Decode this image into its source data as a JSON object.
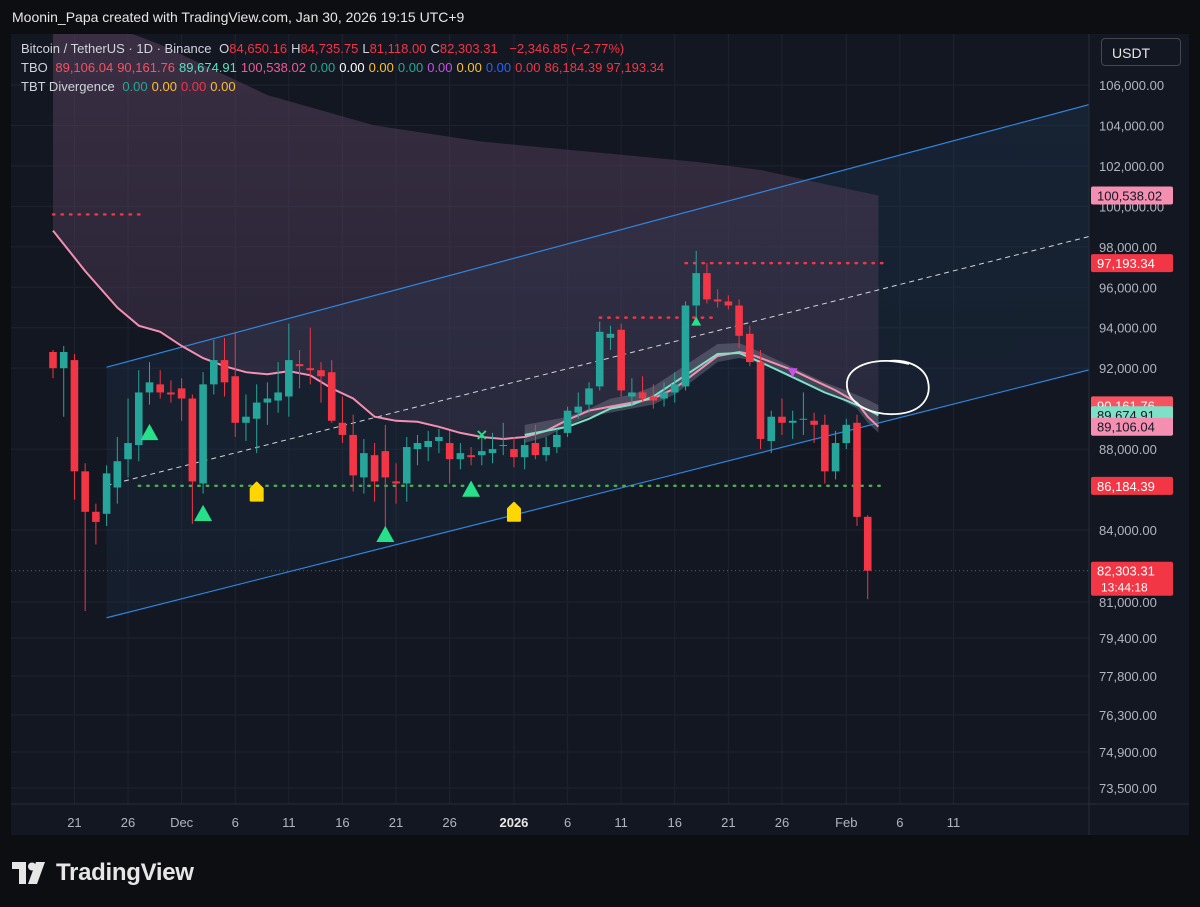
{
  "header": {
    "credit": "Moonin_Papa created with TradingView.com, Jan 30, 2026 19:15 UTC+9"
  },
  "legend": {
    "symbol": "Bitcoin / TetherUS · 1D · Binance",
    "ohlc": [
      {
        "k": "O",
        "v": "84,650.16"
      },
      {
        "k": "H",
        "v": "84,735.75"
      },
      {
        "k": "L",
        "v": "81,118.00"
      },
      {
        "k": "C",
        "v": "82,303.31"
      }
    ],
    "change": "−2,346.85 (−2.77%)",
    "tbo_name": "TBO",
    "tbo_values": [
      {
        "v": "89,106.04",
        "c": "#f7525f"
      },
      {
        "v": "90,161.76",
        "c": "#f7525f"
      },
      {
        "v": "89,674.91",
        "c": "#5ce0c0"
      },
      {
        "v": "100,538.02",
        "c": "#f05a9b"
      },
      {
        "v": "0.00",
        "c": "#22ab94"
      },
      {
        "v": "0.00",
        "c": "#ffffff"
      },
      {
        "v": "0.00",
        "c": "#fbc02d"
      },
      {
        "v": "0.00",
        "c": "#22ab94"
      },
      {
        "v": "0.00",
        "c": "#c850e6"
      },
      {
        "v": "0.00",
        "c": "#fbc02d"
      },
      {
        "v": "0.00",
        "c": "#2962ff"
      },
      {
        "v": "0.00",
        "c": "#f23645"
      },
      {
        "v": "86,184.39",
        "c": "#f23645"
      },
      {
        "v": "97,193.34",
        "c": "#f23645"
      }
    ],
    "tbt_name": "TBT Divergence",
    "tbt_values": [
      {
        "v": "0.00",
        "c": "#22ab94"
      },
      {
        "v": "0.00",
        "c": "#fbc02d"
      },
      {
        "v": "0.00",
        "c": "#f23645"
      },
      {
        "v": "0.00",
        "c": "#fbc02d"
      }
    ]
  },
  "unit_button": "USDT",
  "footer": {
    "brand": "TradingView"
  },
  "chart_data": {
    "type": "candlestick",
    "symbol": "Bitcoin / TetherUS",
    "interval": "1D",
    "exchange": "Binance",
    "colors": {
      "up": "#26a69a",
      "down": "#f23645",
      "background": "#131722",
      "grid": "#1f2330",
      "channel": "#2e86de",
      "tbo_fast": "#f48fb1",
      "tbo_slow": "#7fe0c8"
    },
    "y_ticks": [
      "106,000.00",
      "104,000.00",
      "102,000.00",
      "100,000.00",
      "98,000.00",
      "96,000.00",
      "94,000.00",
      "92,000.00",
      "88,000.00",
      "84,000.00",
      "81,000.00",
      "79,400.00",
      "77,800.00",
      "76,300.00",
      "74,900.00",
      "73,500.00"
    ],
    "y_tick_values": [
      106000,
      104000,
      102000,
      100000,
      98000,
      96000,
      94000,
      92000,
      88000,
      84000,
      81000,
      79400,
      77800,
      76300,
      74900,
      73500
    ],
    "x_ticks": [
      {
        "label": "21",
        "date": "2025-11-21",
        "bold": false
      },
      {
        "label": "26",
        "date": "2025-11-26",
        "bold": false
      },
      {
        "label": "Dec",
        "date": "2025-12-01",
        "bold": false
      },
      {
        "label": "6",
        "date": "2025-12-06",
        "bold": false
      },
      {
        "label": "11",
        "date": "2025-12-11",
        "bold": false
      },
      {
        "label": "16",
        "date": "2025-12-16",
        "bold": false
      },
      {
        "label": "21",
        "date": "2025-12-21",
        "bold": false
      },
      {
        "label": "26",
        "date": "2025-12-26",
        "bold": false
      },
      {
        "label": "2026",
        "date": "2026-01-01",
        "bold": true
      },
      {
        "label": "6",
        "date": "2026-01-06",
        "bold": false
      },
      {
        "label": "11",
        "date": "2026-01-11",
        "bold": false
      },
      {
        "label": "16",
        "date": "2026-01-16",
        "bold": false
      },
      {
        "label": "21",
        "date": "2026-01-21",
        "bold": false
      },
      {
        "label": "26",
        "date": "2026-01-26",
        "bold": false
      },
      {
        "label": "Feb",
        "date": "2026-02-01",
        "bold": false
      },
      {
        "label": "6",
        "date": "2026-02-06",
        "bold": false
      },
      {
        "label": "11",
        "date": "2026-02-11",
        "bold": false
      }
    ],
    "price_labels": [
      {
        "text": "100,538.02",
        "value": 100538.02,
        "bg": "#f48fb1",
        "fg": "#131722"
      },
      {
        "text": "97,193.34",
        "value": 97193.34,
        "bg": "#f23645",
        "fg": "#ffffff"
      },
      {
        "text": "90,161.76",
        "value": 90161.76,
        "bg": "#f7525f",
        "fg": "#ffffff"
      },
      {
        "text": "89,674.91",
        "value": 89674.91,
        "bg": "#7fe0c8",
        "fg": "#131722"
      },
      {
        "text": "89,106.04",
        "value": 89106.04,
        "bg": "#f48fb1",
        "fg": "#131722"
      },
      {
        "text": "86,184.39",
        "value": 86184.39,
        "bg": "#f23645",
        "fg": "#ffffff"
      },
      {
        "text": "82,303.31",
        "value": 82303.31,
        "bg": "#f23645",
        "fg": "#ffffff"
      }
    ],
    "countdown": "13:44:18",
    "candles": [
      {
        "d": "2025-11-19",
        "o": 92800,
        "h": 92900,
        "l": 91500,
        "c": 92000
      },
      {
        "d": "2025-11-20",
        "o": 92000,
        "h": 93100,
        "l": 89600,
        "c": 92800
      },
      {
        "d": "2025-11-21",
        "o": 92400,
        "h": 92700,
        "l": 85500,
        "c": 86900
      },
      {
        "d": "2025-11-22",
        "o": 86900,
        "h": 87300,
        "l": 80600,
        "c": 84900
      },
      {
        "d": "2025-11-23",
        "o": 84900,
        "h": 85300,
        "l": 83400,
        "c": 84400
      },
      {
        "d": "2025-11-24",
        "o": 84800,
        "h": 87200,
        "l": 84200,
        "c": 86800
      },
      {
        "d": "2025-11-25",
        "o": 86100,
        "h": 88600,
        "l": 85300,
        "c": 87400
      },
      {
        "d": "2025-11-26",
        "o": 87500,
        "h": 90500,
        "l": 86600,
        "c": 88300
      },
      {
        "d": "2025-11-27",
        "o": 88200,
        "h": 91900,
        "l": 87400,
        "c": 90800
      },
      {
        "d": "2025-11-28",
        "o": 90800,
        "h": 92300,
        "l": 90200,
        "c": 91300
      },
      {
        "d": "2025-11-29",
        "o": 91200,
        "h": 91900,
        "l": 90500,
        "c": 90800
      },
      {
        "d": "2025-11-30",
        "o": 90800,
        "h": 91400,
        "l": 90300,
        "c": 90700
      },
      {
        "d": "2025-12-01",
        "o": 91000,
        "h": 91500,
        "l": 89400,
        "c": 90500
      },
      {
        "d": "2025-12-02",
        "o": 90500,
        "h": 90700,
        "l": 84300,
        "c": 86400
      },
      {
        "d": "2025-12-03",
        "o": 86300,
        "h": 91800,
        "l": 85800,
        "c": 91200
      },
      {
        "d": "2025-12-04",
        "o": 91200,
        "h": 93400,
        "l": 90700,
        "c": 92400
      },
      {
        "d": "2025-12-05",
        "o": 92400,
        "h": 93500,
        "l": 90600,
        "c": 91300
      },
      {
        "d": "2025-12-06",
        "o": 91600,
        "h": 93800,
        "l": 88600,
        "c": 89300
      },
      {
        "d": "2025-12-07",
        "o": 89300,
        "h": 90700,
        "l": 88400,
        "c": 89600
      },
      {
        "d": "2025-12-08",
        "o": 89500,
        "h": 91200,
        "l": 87800,
        "c": 90300
      },
      {
        "d": "2025-12-09",
        "o": 90300,
        "h": 91300,
        "l": 89200,
        "c": 90500
      },
      {
        "d": "2025-12-10",
        "o": 90400,
        "h": 92300,
        "l": 89800,
        "c": 90800
      },
      {
        "d": "2025-12-11",
        "o": 90600,
        "h": 94200,
        "l": 89600,
        "c": 92400
      },
      {
        "d": "2025-12-12",
        "o": 92200,
        "h": 92900,
        "l": 91000,
        "c": 92100
      },
      {
        "d": "2025-12-13",
        "o": 92000,
        "h": 94000,
        "l": 91200,
        "c": 91900
      },
      {
        "d": "2025-12-14",
        "o": 91900,
        "h": 92300,
        "l": 90300,
        "c": 91600
      },
      {
        "d": "2025-12-15",
        "o": 91800,
        "h": 92400,
        "l": 89300,
        "c": 89400
      },
      {
        "d": "2025-12-16",
        "o": 89300,
        "h": 90600,
        "l": 88300,
        "c": 88700
      },
      {
        "d": "2025-12-17",
        "o": 88700,
        "h": 89700,
        "l": 85900,
        "c": 86700
      },
      {
        "d": "2025-12-18",
        "o": 86600,
        "h": 88500,
        "l": 85800,
        "c": 87800
      },
      {
        "d": "2025-12-19",
        "o": 87700,
        "h": 88300,
        "l": 85400,
        "c": 86400
      },
      {
        "d": "2025-12-20",
        "o": 87900,
        "h": 89200,
        "l": 84100,
        "c": 86600
      },
      {
        "d": "2025-12-21",
        "o": 86400,
        "h": 87300,
        "l": 85300,
        "c": 86300
      },
      {
        "d": "2025-12-22",
        "o": 86300,
        "h": 88600,
        "l": 85400,
        "c": 88100
      },
      {
        "d": "2025-12-23",
        "o": 88000,
        "h": 88700,
        "l": 87200,
        "c": 88300
      },
      {
        "d": "2025-12-24",
        "o": 88100,
        "h": 88900,
        "l": 87400,
        "c": 88400
      },
      {
        "d": "2025-12-25",
        "o": 88400,
        "h": 89000,
        "l": 87800,
        "c": 88600
      },
      {
        "d": "2025-12-26",
        "o": 88300,
        "h": 88900,
        "l": 86300,
        "c": 87500
      },
      {
        "d": "2025-12-27",
        "o": 87500,
        "h": 88300,
        "l": 87000,
        "c": 87800
      },
      {
        "d": "2025-12-28",
        "o": 87700,
        "h": 88100,
        "l": 87200,
        "c": 87600
      },
      {
        "d": "2025-12-29",
        "o": 87700,
        "h": 88600,
        "l": 87200,
        "c": 87900
      },
      {
        "d": "2025-12-30",
        "o": 87800,
        "h": 88800,
        "l": 87300,
        "c": 88000
      },
      {
        "d": "2025-12-31",
        "o": 88200,
        "h": 89300,
        "l": 87700,
        "c": 88200
      },
      {
        "d": "2026-01-01",
        "o": 88000,
        "h": 88600,
        "l": 87100,
        "c": 87600
      },
      {
        "d": "2026-01-02",
        "o": 87600,
        "h": 88500,
        "l": 87000,
        "c": 88200
      },
      {
        "d": "2026-01-03",
        "o": 88300,
        "h": 89200,
        "l": 87500,
        "c": 87700
      },
      {
        "d": "2026-01-04",
        "o": 87700,
        "h": 88600,
        "l": 87400,
        "c": 88100
      },
      {
        "d": "2026-01-05",
        "o": 88100,
        "h": 89000,
        "l": 87800,
        "c": 88700
      },
      {
        "d": "2026-01-06",
        "o": 88800,
        "h": 90100,
        "l": 88600,
        "c": 89900
      },
      {
        "d": "2026-01-07",
        "o": 89800,
        "h": 90800,
        "l": 89500,
        "c": 90100
      },
      {
        "d": "2026-01-08",
        "o": 90200,
        "h": 91300,
        "l": 89800,
        "c": 91000
      },
      {
        "d": "2026-01-09",
        "o": 91100,
        "h": 94300,
        "l": 90900,
        "c": 93800
      },
      {
        "d": "2026-01-10",
        "o": 93500,
        "h": 94100,
        "l": 92900,
        "c": 93700
      },
      {
        "d": "2026-01-11",
        "o": 93900,
        "h": 94200,
        "l": 90600,
        "c": 90900
      },
      {
        "d": "2026-01-12",
        "o": 90600,
        "h": 91500,
        "l": 90100,
        "c": 90800
      },
      {
        "d": "2026-01-13",
        "o": 90800,
        "h": 91600,
        "l": 90300,
        "c": 90500
      },
      {
        "d": "2026-01-14",
        "o": 90600,
        "h": 91200,
        "l": 90000,
        "c": 90400
      },
      {
        "d": "2026-01-15",
        "o": 90500,
        "h": 91300,
        "l": 90100,
        "c": 90800
      },
      {
        "d": "2026-01-16",
        "o": 90800,
        "h": 91800,
        "l": 90300,
        "c": 91200
      },
      {
        "d": "2026-01-17",
        "o": 91100,
        "h": 95300,
        "l": 90900,
        "c": 95100
      },
      {
        "d": "2026-01-18",
        "o": 95100,
        "h": 97800,
        "l": 94500,
        "c": 96700
      },
      {
        "d": "2026-01-19",
        "o": 96700,
        "h": 97200,
        "l": 95200,
        "c": 95400
      },
      {
        "d": "2026-01-20",
        "o": 95400,
        "h": 95900,
        "l": 95000,
        "c": 95300
      },
      {
        "d": "2026-01-21",
        "o": 95300,
        "h": 95600,
        "l": 94900,
        "c": 95100
      },
      {
        "d": "2026-01-22",
        "o": 95100,
        "h": 95400,
        "l": 93000,
        "c": 93600
      },
      {
        "d": "2026-01-23",
        "o": 93700,
        "h": 94100,
        "l": 92100,
        "c": 92300
      },
      {
        "d": "2026-01-24",
        "o": 92300,
        "h": 92900,
        "l": 88000,
        "c": 88500
      },
      {
        "d": "2026-01-25",
        "o": 88400,
        "h": 89900,
        "l": 87800,
        "c": 89600
      },
      {
        "d": "2026-01-26",
        "o": 89600,
        "h": 90500,
        "l": 88700,
        "c": 89300
      },
      {
        "d": "2026-01-27",
        "o": 89300,
        "h": 89900,
        "l": 88500,
        "c": 89400
      },
      {
        "d": "2026-01-28",
        "o": 89500,
        "h": 90800,
        "l": 88700,
        "c": 89500
      },
      {
        "d": "2026-01-29",
        "o": 89400,
        "h": 89800,
        "l": 88300,
        "c": 89200
      },
      {
        "d": "2026-01-30",
        "o": 89200,
        "h": 89700,
        "l": 86300,
        "c": 86900
      },
      {
        "d": "2026-01-31",
        "o": 86900,
        "h": 88900,
        "l": 86500,
        "c": 88300
      },
      {
        "d": "2026-02-01",
        "o": 88300,
        "h": 89500,
        "l": 88000,
        "c": 89200
      },
      {
        "d": "2026-02-02",
        "o": 89300,
        "h": 89700,
        "l": 84200,
        "c": 84650
      },
      {
        "d": "2026-02-03",
        "o": 84650.16,
        "h": 84735.75,
        "l": 81118,
        "c": 82303.31
      }
    ],
    "tbo_fast": [
      [
        0,
        98800
      ],
      [
        3,
        96800
      ],
      [
        6,
        95000
      ],
      [
        8,
        94100
      ],
      [
        10,
        93800
      ],
      [
        12,
        93100
      ],
      [
        14,
        92500
      ],
      [
        16,
        92100
      ],
      [
        18,
        91800
      ],
      [
        20,
        91700
      ],
      [
        22,
        91850
      ],
      [
        24,
        91650
      ],
      [
        26,
        91000
      ],
      [
        28,
        90500
      ],
      [
        30,
        89600
      ],
      [
        32,
        89400
      ],
      [
        34,
        89350
      ],
      [
        36,
        89100
      ],
      [
        38,
        88800
      ],
      [
        40,
        88600
      ],
      [
        42,
        88500
      ],
      [
        44,
        88600
      ],
      [
        46,
        88900
      ],
      [
        48,
        89450
      ],
      [
        50,
        89900
      ],
      [
        52,
        90100
      ],
      [
        54,
        90300
      ],
      [
        56,
        90500
      ],
      [
        58,
        91000
      ],
      [
        60,
        91800
      ],
      [
        62,
        92600
      ],
      [
        64,
        92800
      ],
      [
        65,
        92700
      ],
      [
        67,
        92300
      ],
      [
        69,
        91900
      ],
      [
        71,
        91400
      ],
      [
        73,
        90900
      ],
      [
        75,
        90300
      ],
      [
        76,
        89600
      ],
      [
        77,
        89106
      ]
    ],
    "tbo_slow": [
      [
        44,
        88700
      ],
      [
        46,
        88900
      ],
      [
        48,
        89100
      ],
      [
        50,
        89500
      ],
      [
        52,
        90000
      ],
      [
        54,
        90200
      ],
      [
        56,
        90600
      ],
      [
        58,
        91300
      ],
      [
        60,
        92000
      ],
      [
        62,
        92700
      ],
      [
        64,
        92750
      ],
      [
        66,
        92300
      ],
      [
        68,
        91800
      ],
      [
        70,
        91300
      ],
      [
        72,
        90800
      ],
      [
        74,
        90400
      ],
      [
        76,
        89950
      ],
      [
        77,
        89675
      ]
    ],
    "channel": {
      "upper": [
        [
          5,
          92050
        ],
        [
          107,
          106500
        ]
      ],
      "lower": [
        [
          5,
          80300
        ],
        [
          107,
          93300
        ]
      ],
      "mid": [
        [
          5,
          86200
        ],
        [
          107,
          99900
        ]
      ]
    },
    "levels": [
      {
        "value": 99600,
        "from": 0,
        "to": 8,
        "color": "#f23645"
      },
      {
        "value": 97193.34,
        "from": 59,
        "to": 77,
        "color": "#f23645"
      },
      {
        "value": 94500,
        "from": 51,
        "to": 61,
        "color": "#f23645"
      },
      {
        "value": 86184.39,
        "from": 8,
        "to": 77,
        "color": "#4caf50"
      }
    ],
    "markers": [
      {
        "i": 9,
        "type": "up",
        "value": 88800,
        "color": "#26e08a",
        "size": "lg"
      },
      {
        "i": 14,
        "type": "up",
        "value": 84800,
        "color": "#26e08a",
        "size": "lg"
      },
      {
        "i": 19,
        "type": "tag",
        "value": 85900,
        "color": "#ffd600"
      },
      {
        "i": 31,
        "type": "up",
        "value": 83800,
        "color": "#26e08a",
        "size": "lg"
      },
      {
        "i": 39,
        "type": "up",
        "value": 86000,
        "color": "#26e08a",
        "size": "lg"
      },
      {
        "i": 40,
        "type": "x",
        "value": 88700,
        "color": "#26e08a"
      },
      {
        "i": 43,
        "type": "tag",
        "value": 84900,
        "color": "#ffd600"
      },
      {
        "i": 60,
        "type": "up",
        "value": 94300,
        "color": "#26e08a",
        "size": "sm"
      },
      {
        "i": 69,
        "type": "down",
        "value": 91800,
        "color": "#c850e6",
        "size": "sm"
      }
    ],
    "cloud_top": [
      [
        0,
        110000
      ],
      [
        10,
        108000
      ],
      [
        20,
        105500
      ],
      [
        30,
        104000
      ],
      [
        40,
        103200
      ],
      [
        50,
        102700
      ],
      [
        60,
        102200
      ],
      [
        66,
        101800
      ],
      [
        72,
        101100
      ],
      [
        77,
        100538
      ]
    ],
    "current_price": 82303.31
  }
}
